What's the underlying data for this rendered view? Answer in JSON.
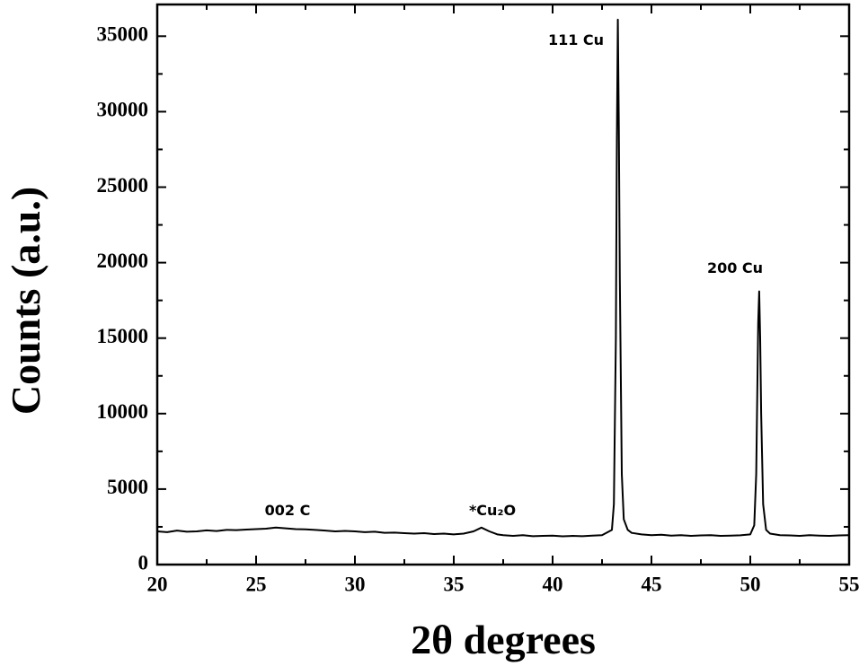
{
  "chart_data": {
    "type": "line",
    "x_label": "2θ degrees",
    "y_label": "Counts (a.u.)",
    "annotations": [
      "111 Cu",
      "200 Cu",
      "002 C",
      "*Cu₂O"
    ],
    "xlim": [
      20,
      55
    ],
    "ylim": [
      0,
      37100
    ],
    "xticks": [
      20,
      25,
      30,
      35,
      40,
      45,
      50,
      55
    ],
    "yticks": [
      0,
      5000,
      10000,
      15000,
      20000,
      25000,
      30000,
      35000
    ],
    "xminorticks": [
      22.5,
      27.5,
      32.5,
      37.5,
      42.5,
      47.5,
      52.5
    ],
    "yminorticks": [
      2500,
      7500,
      12500,
      17500,
      22500,
      27500,
      32500
    ],
    "series": [
      {
        "color": "#000000",
        "x": [
          20,
          20.5,
          21,
          21.5,
          22,
          22.5,
          23,
          23.5,
          24,
          24.5,
          25,
          25.5,
          26,
          26.5,
          27,
          27.5,
          28,
          28.5,
          29,
          29.5,
          30,
          30.5,
          31,
          31.5,
          32,
          32.5,
          33,
          33.5,
          34,
          34.5,
          35,
          35.5,
          36,
          36.4,
          36.8,
          37.2,
          37.5,
          38,
          38.5,
          39,
          39.5,
          40,
          40.5,
          41,
          41.5,
          42,
          42.5,
          43,
          43.1,
          43.2,
          43.25,
          43.3,
          43.35,
          43.4,
          43.5,
          43.6,
          43.8,
          44,
          44.5,
          45,
          45.5,
          46,
          46.5,
          47,
          47.5,
          48,
          48.5,
          49,
          49.5,
          50,
          50.2,
          50.3,
          50.4,
          50.45,
          50.5,
          50.55,
          50.65,
          50.8,
          51,
          51.5,
          52,
          52.5,
          53,
          53.5,
          54,
          54.5,
          55
        ],
        "values": [
          2200,
          2150,
          2250,
          2180,
          2200,
          2270,
          2220,
          2300,
          2280,
          2320,
          2350,
          2380,
          2450,
          2400,
          2350,
          2330,
          2300,
          2250,
          2200,
          2230,
          2200,
          2150,
          2180,
          2100,
          2120,
          2080,
          2050,
          2080,
          2020,
          2050,
          2000,
          2050,
          2200,
          2450,
          2200,
          2000,
          1950,
          1900,
          1950,
          1880,
          1900,
          1920,
          1870,
          1900,
          1880,
          1920,
          1950,
          2300,
          4000,
          15000,
          28000,
          36100,
          29000,
          19000,
          6000,
          3000,
          2300,
          2100,
          2000,
          1950,
          1980,
          1920,
          1950,
          1900,
          1930,
          1950,
          1900,
          1920,
          1940,
          2000,
          2600,
          6000,
          16000,
          18100,
          15000,
          10000,
          4000,
          2300,
          2050,
          1950,
          1930,
          1900,
          1950,
          1920,
          1900,
          1930,
          1950
        ]
      }
    ]
  }
}
